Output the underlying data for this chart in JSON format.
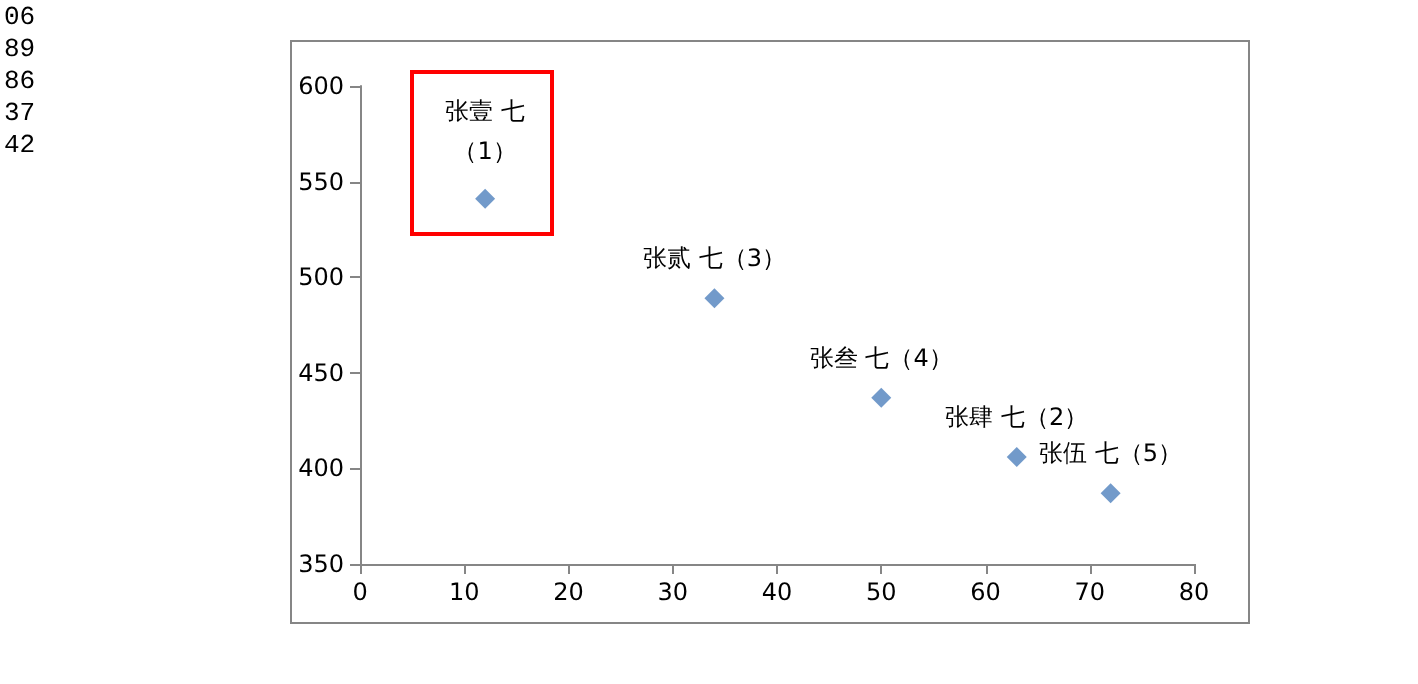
{
  "chart_data": {
    "type": "scatter",
    "x": [
      12,
      34,
      50,
      63,
      72
    ],
    "values": [
      541,
      489,
      437,
      406,
      387
    ],
    "color": "#4f81bd",
    "marker": "diamond",
    "xlim": [
      0,
      80
    ],
    "xticks": [
      0,
      10,
      20,
      30,
      40,
      50,
      60,
      70,
      80
    ],
    "ylim": [
      350,
      600
    ],
    "yticks": [
      350,
      400,
      450,
      500,
      550,
      600
    ],
    "grid": false,
    "annotations": [
      "06",
      "89",
      "86",
      "37",
      "42",
      {
        "text": "张壹 七（1）",
        "x": 12,
        "y": 541
      },
      {
        "text": "张贰 七（3）",
        "x": 34,
        "y": 489
      },
      {
        "text": "张叁 七（4）",
        "x": 50,
        "y": 437
      },
      {
        "text": "张肆 七（2）",
        "x": 63,
        "y": 406
      },
      {
        "text": "张伍 七（5）",
        "x": 72,
        "y": 387
      }
    ]
  }
}
